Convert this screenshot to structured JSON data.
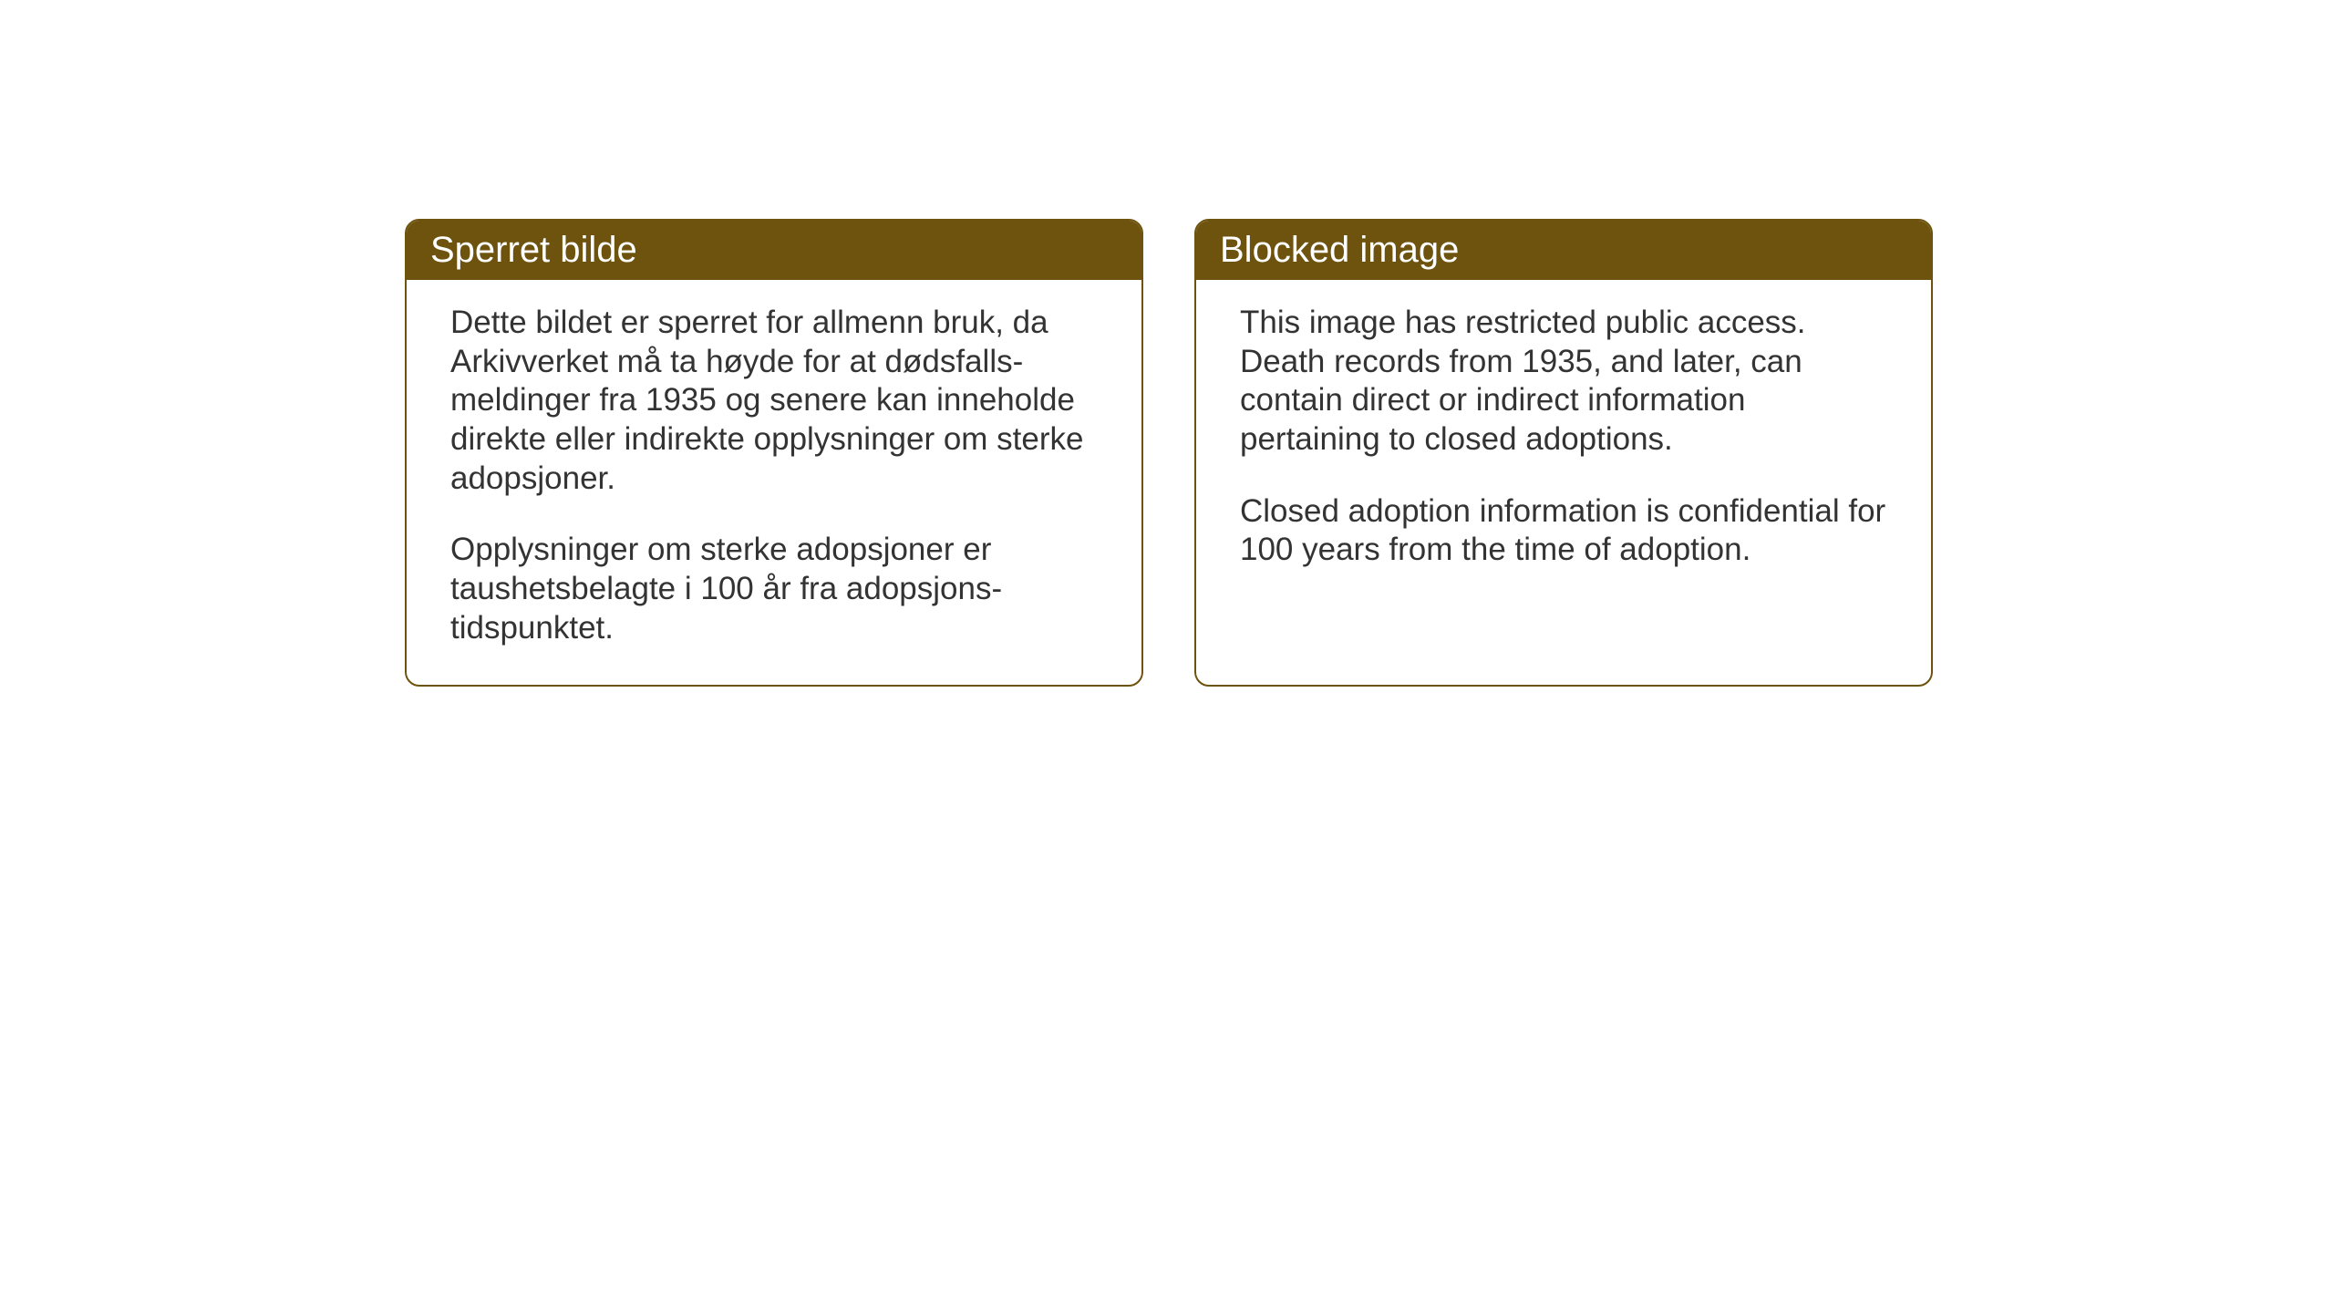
{
  "background_color": "#ffffff",
  "card_border_color": "#6e530f",
  "card_header_bg": "#6e530f",
  "card_header_text_color": "#ffffff",
  "card_body_text_color": "#333333",
  "card_border_radius": 16,
  "header_fontsize": 40,
  "body_fontsize": 35,
  "cards": [
    {
      "title": "Sperret bilde",
      "paragraphs": [
        "Dette bildet er sperret for allmenn bruk, da Arkivverket må ta høyde for at dødsfalls-meldinger fra 1935 og senere kan inneholde direkte eller indirekte opplysninger om sterke adopsjoner.",
        "Opplysninger om sterke adopsjoner er taushetsbelagte i 100 år fra adopsjons-tidspunktet."
      ]
    },
    {
      "title": "Blocked image",
      "paragraphs": [
        "This image has restricted public access. Death records from 1935, and later, can contain direct or indirect information pertaining to closed adoptions.",
        "Closed adoption information is confidential for 100 years from the time of adoption."
      ]
    }
  ]
}
